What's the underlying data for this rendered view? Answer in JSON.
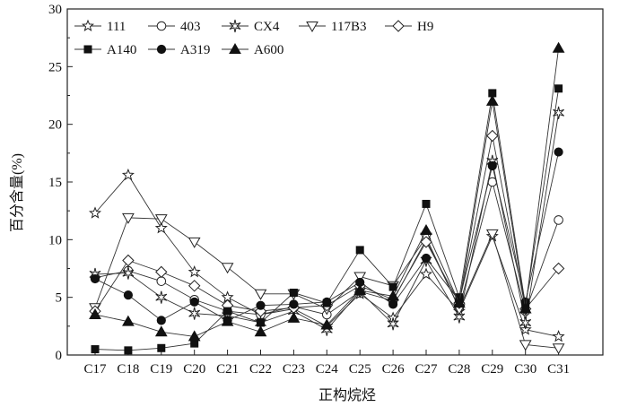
{
  "chart_data": {
    "type": "line",
    "title": "",
    "xlabel": "正构烷烃",
    "ylabel": "百分含量(%)",
    "ylim": [
      0,
      30
    ],
    "yticks": [
      0,
      5,
      10,
      15,
      20,
      25,
      30
    ],
    "categories": [
      "C17",
      "C18",
      "C19",
      "C20",
      "C21",
      "C22",
      "C23",
      "C24",
      "C25",
      "C26",
      "C27",
      "C28",
      "C29",
      "C30",
      "C31"
    ],
    "legend_position": "top-left",
    "series": [
      {
        "name": "111",
        "marker": "star-open",
        "values": [
          12.3,
          15.6,
          11.0,
          7.2,
          5.0,
          3.5,
          4.0,
          2.5,
          5.3,
          3.2,
          7.0,
          3.8,
          10.3,
          2.2,
          1.6
        ]
      },
      {
        "name": "403",
        "marker": "circle-open",
        "values": [
          6.7,
          7.3,
          6.4,
          4.8,
          3.8,
          3.5,
          4.2,
          3.5,
          5.5,
          4.7,
          10.0,
          4.1,
          15.0,
          3.8,
          11.7
        ]
      },
      {
        "name": "CX4",
        "marker": "star6-open",
        "values": [
          7.0,
          7.1,
          5.0,
          3.6,
          3.4,
          2.8,
          3.8,
          2.2,
          5.5,
          2.7,
          8.2,
          3.3,
          16.8,
          2.8,
          21.0
        ]
      },
      {
        "name": "117B3",
        "marker": "triangle-down-open",
        "values": [
          4.1,
          11.9,
          11.8,
          9.8,
          7.6,
          5.3,
          5.3,
          4.0,
          6.8,
          6.0,
          10.2,
          4.0,
          10.5,
          0.9,
          0.6
        ]
      },
      {
        "name": "H9",
        "marker": "diamond-open",
        "values": [
          3.8,
          8.2,
          7.2,
          6.0,
          4.3,
          3.8,
          4.1,
          4.3,
          6.0,
          4.8,
          9.8,
          4.5,
          19.0,
          4.0,
          7.5
        ]
      },
      {
        "name": "A140",
        "marker": "square-filled",
        "values": [
          0.5,
          0.4,
          0.6,
          1.0,
          3.8,
          2.8,
          5.4,
          4.5,
          9.1,
          5.9,
          13.1,
          5.0,
          22.7,
          4.3,
          23.1
        ]
      },
      {
        "name": "A319",
        "marker": "circle-filled",
        "values": [
          6.6,
          5.2,
          3.0,
          4.6,
          3.0,
          4.3,
          4.4,
          4.6,
          6.3,
          4.4,
          8.4,
          4.7,
          16.4,
          4.6,
          17.6
        ]
      },
      {
        "name": "A600",
        "marker": "triangle-filled",
        "values": [
          3.5,
          2.9,
          2.0,
          1.6,
          2.9,
          2.0,
          3.2,
          2.6,
          5.6,
          5.1,
          10.8,
          4.5,
          22.0,
          4.0,
          26.6
        ]
      }
    ]
  }
}
